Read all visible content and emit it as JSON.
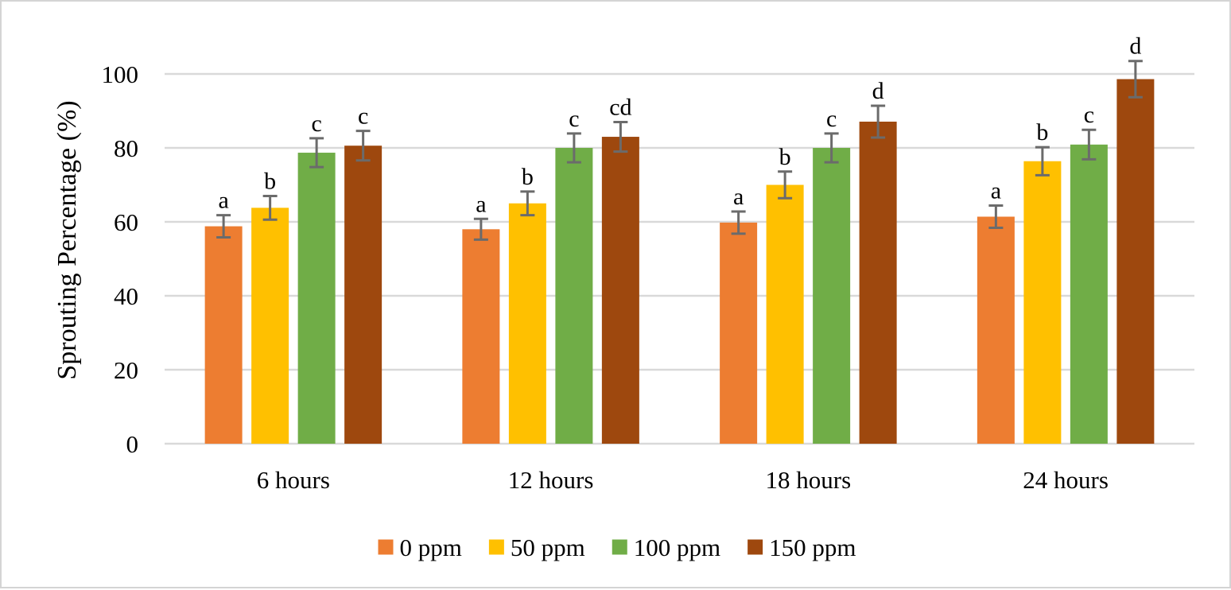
{
  "chart_data": {
    "type": "bar",
    "title": "",
    "xlabel": "",
    "ylabel": "Sprouting Percentage (%)",
    "ylim": [
      0,
      100
    ],
    "yticks": [
      0,
      20,
      40,
      60,
      80,
      100
    ],
    "grid": true,
    "legend_position": "bottom",
    "categories": [
      "6 hours",
      "12 hours",
      "18 hours",
      "24 hours"
    ],
    "series": [
      {
        "name": "0 ppm",
        "color": "#ED7D31",
        "values": [
          58.8,
          58.0,
          59.8,
          61.4
        ],
        "errors": [
          3.0,
          2.8,
          3.0,
          3.0
        ],
        "significance": [
          "a",
          "a",
          "a",
          "a"
        ]
      },
      {
        "name": "50 ppm",
        "color": "#FFC000",
        "values": [
          63.8,
          65.0,
          70.0,
          76.4
        ],
        "errors": [
          3.2,
          3.2,
          3.6,
          3.8
        ],
        "significance": [
          "b",
          "b",
          "b",
          "b"
        ]
      },
      {
        "name": "100 ppm",
        "color": "#70AD47",
        "values": [
          78.7,
          80.0,
          80.0,
          80.9
        ],
        "errors": [
          3.9,
          3.9,
          3.9,
          4.0
        ],
        "significance": [
          "c",
          "c",
          "c",
          "c"
        ]
      },
      {
        "name": "150 ppm",
        "color": "#9E480E",
        "values": [
          80.6,
          83.0,
          87.1,
          98.6
        ],
        "errors": [
          4.0,
          4.0,
          4.3,
          4.9
        ],
        "significance": [
          "c",
          "cd",
          "d",
          "d"
        ]
      }
    ]
  }
}
